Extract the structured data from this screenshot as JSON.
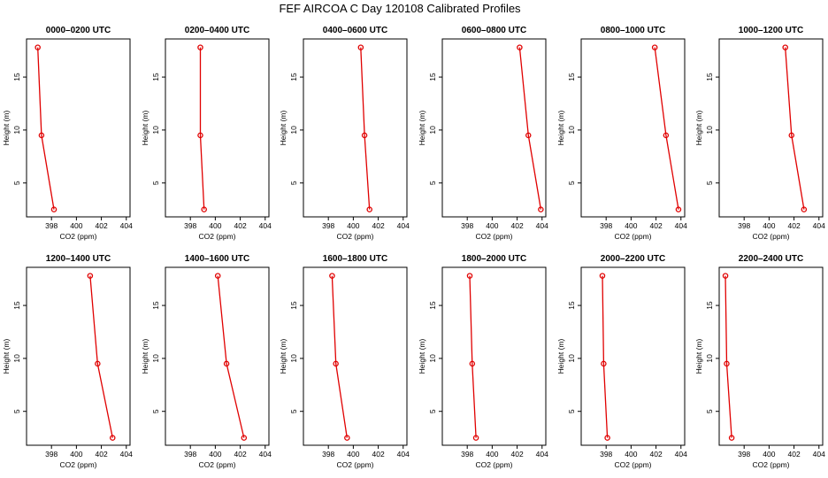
{
  "title": "FEF AIRCOA C  Day 120108  Calibrated Profiles",
  "chart_data": [
    {
      "type": "line",
      "title": "0000–0200 UTC",
      "xlabel": "CO2 (ppm)",
      "ylabel": "Height (m)",
      "xlim": [
        396,
        404.3
      ],
      "ylim": [
        1.8,
        18.6
      ],
      "xticks": [
        398,
        400,
        402,
        404
      ],
      "yticks": [
        5,
        10,
        15
      ],
      "x": [
        396.9,
        397.2,
        398.2
      ],
      "y": [
        17.8,
        9.5,
        2.5
      ]
    },
    {
      "type": "line",
      "title": "0200–0400 UTC",
      "xlabel": "CO2 (ppm)",
      "ylabel": "Height (m)",
      "xlim": [
        396,
        404.3
      ],
      "ylim": [
        1.8,
        18.6
      ],
      "xticks": [
        398,
        400,
        402,
        404
      ],
      "yticks": [
        5,
        10,
        15
      ],
      "x": [
        398.8,
        398.8,
        399.1
      ],
      "y": [
        17.8,
        9.5,
        2.5
      ]
    },
    {
      "type": "line",
      "title": "0400–0600 UTC",
      "xlabel": "CO2 (ppm)",
      "ylabel": "Height (m)",
      "xlim": [
        396,
        404.3
      ],
      "ylim": [
        1.8,
        18.6
      ],
      "xticks": [
        398,
        400,
        402,
        404
      ],
      "yticks": [
        5,
        10,
        15
      ],
      "x": [
        400.6,
        400.9,
        401.3
      ],
      "y": [
        17.8,
        9.5,
        2.5
      ]
    },
    {
      "type": "line",
      "title": "0600–0800 UTC",
      "xlabel": "CO2 (ppm)",
      "ylabel": "Height (m)",
      "xlim": [
        396,
        404.3
      ],
      "ylim": [
        1.8,
        18.6
      ],
      "xticks": [
        398,
        400,
        402,
        404
      ],
      "yticks": [
        5,
        10,
        15
      ],
      "x": [
        402.2,
        402.9,
        403.9
      ],
      "y": [
        17.8,
        9.5,
        2.5
      ]
    },
    {
      "type": "line",
      "title": "0800–1000 UTC",
      "xlabel": "CO2 (ppm)",
      "ylabel": "Height (m)",
      "xlim": [
        396,
        404.3
      ],
      "ylim": [
        1.8,
        18.6
      ],
      "xticks": [
        398,
        400,
        402,
        404
      ],
      "yticks": [
        5,
        10,
        15
      ],
      "x": [
        401.9,
        402.8,
        403.8
      ],
      "y": [
        17.8,
        9.5,
        2.5
      ]
    },
    {
      "type": "line",
      "title": "1000–1200 UTC",
      "xlabel": "CO2 (ppm)",
      "ylabel": "Height (m)",
      "xlim": [
        396,
        404.3
      ],
      "ylim": [
        1.8,
        18.6
      ],
      "xticks": [
        398,
        400,
        402,
        404
      ],
      "yticks": [
        5,
        10,
        15
      ],
      "x": [
        401.3,
        401.8,
        402.8
      ],
      "y": [
        17.8,
        9.5,
        2.5
      ]
    },
    {
      "type": "line",
      "title": "1200–1400 UTC",
      "xlabel": "CO2 (ppm)",
      "ylabel": "Height (m)",
      "xlim": [
        396,
        404.3
      ],
      "ylim": [
        1.8,
        18.6
      ],
      "xticks": [
        398,
        400,
        402,
        404
      ],
      "yticks": [
        5,
        10,
        15
      ],
      "x": [
        401.1,
        401.7,
        402.9
      ],
      "y": [
        17.8,
        9.5,
        2.5
      ]
    },
    {
      "type": "line",
      "title": "1400–1600 UTC",
      "xlabel": "CO2 (ppm)",
      "ylabel": "Height (m)",
      "xlim": [
        396,
        404.3
      ],
      "ylim": [
        1.8,
        18.6
      ],
      "xticks": [
        398,
        400,
        402,
        404
      ],
      "yticks": [
        5,
        10,
        15
      ],
      "x": [
        400.2,
        400.9,
        402.3
      ],
      "y": [
        17.8,
        9.5,
        2.5
      ]
    },
    {
      "type": "line",
      "title": "1600–1800 UTC",
      "xlabel": "CO2 (ppm)",
      "ylabel": "Height (m)",
      "xlim": [
        396,
        404.3
      ],
      "ylim": [
        1.8,
        18.6
      ],
      "xticks": [
        398,
        400,
        402,
        404
      ],
      "yticks": [
        5,
        10,
        15
      ],
      "x": [
        398.3,
        398.6,
        399.5
      ],
      "y": [
        17.8,
        9.5,
        2.5
      ]
    },
    {
      "type": "line",
      "title": "1800–2000 UTC",
      "xlabel": "CO2 (ppm)",
      "ylabel": "Height (m)",
      "xlim": [
        396,
        404.3
      ],
      "ylim": [
        1.8,
        18.6
      ],
      "xticks": [
        398,
        400,
        402,
        404
      ],
      "yticks": [
        5,
        10,
        15
      ],
      "x": [
        398.2,
        398.4,
        398.7
      ],
      "y": [
        17.8,
        9.5,
        2.5
      ]
    },
    {
      "type": "line",
      "title": "2000–2200 UTC",
      "xlabel": "CO2 (ppm)",
      "ylabel": "Height (m)",
      "xlim": [
        396,
        404.3
      ],
      "ylim": [
        1.8,
        18.6
      ],
      "xticks": [
        398,
        400,
        402,
        404
      ],
      "yticks": [
        5,
        10,
        15
      ],
      "x": [
        397.7,
        397.8,
        398.1
      ],
      "y": [
        17.8,
        9.5,
        2.5
      ]
    },
    {
      "type": "line",
      "title": "2200–2400 UTC",
      "xlabel": "CO2 (ppm)",
      "ylabel": "Height (m)",
      "xlim": [
        396,
        404.3
      ],
      "ylim": [
        1.8,
        18.6
      ],
      "xticks": [
        398,
        400,
        402,
        404
      ],
      "yticks": [
        5,
        10,
        15
      ],
      "x": [
        396.5,
        396.6,
        397.0
      ],
      "y": [
        17.8,
        9.5,
        2.5
      ]
    }
  ],
  "colors": {
    "series": "#e00000",
    "axis": "#000000"
  }
}
